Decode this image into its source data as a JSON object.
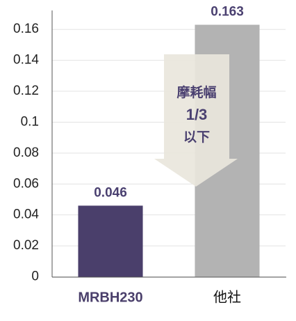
{
  "chart_data": {
    "type": "bar",
    "categories": [
      "MRBH230",
      "他社"
    ],
    "values": [
      0.046,
      0.163
    ],
    "colors": [
      "#4a3f6b",
      "#b3b3b3"
    ],
    "label_colors": [
      "#4a3f6b",
      "#111111"
    ],
    "ylim": [
      0,
      0.17
    ],
    "yticks": [
      0,
      0.02,
      0.04,
      0.06,
      0.08,
      0.1,
      0.12,
      0.14,
      0.16
    ],
    "grid": true,
    "annotation": [
      "摩耗幅",
      "1/3",
      "以下"
    ]
  }
}
